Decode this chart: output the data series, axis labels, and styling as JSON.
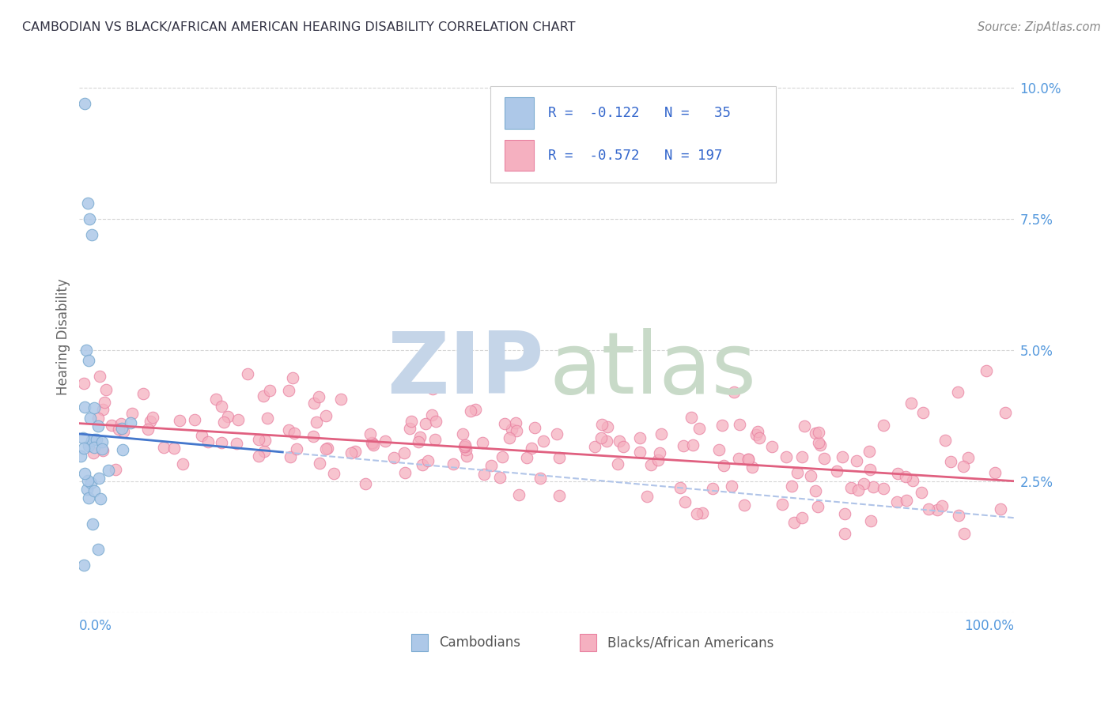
{
  "title": "CAMBODIAN VS BLACK/AFRICAN AMERICAN HEARING DISABILITY CORRELATION CHART",
  "source": "Source: ZipAtlas.com",
  "ylabel": "Hearing Disability",
  "yticks": [
    0.0,
    0.025,
    0.05,
    0.075,
    0.1
  ],
  "ytick_labels": [
    "",
    "2.5%",
    "5.0%",
    "7.5%",
    "10.0%"
  ],
  "xlim": [
    0.0,
    1.0
  ],
  "ylim": [
    0.0,
    0.105
  ],
  "cambodian_color": "#adc8e8",
  "black_color": "#f5b0c0",
  "cambodian_edge": "#7aaad0",
  "black_edge": "#e880a0",
  "blue_line_color": "#4477cc",
  "pink_line_color": "#e06080",
  "dashed_line_color": "#b0c4e8",
  "watermark_zip_color": "#c5d5e8",
  "watermark_atlas_color": "#c8dac8",
  "background_color": "#ffffff",
  "title_color": "#333344",
  "source_color": "#888888",
  "axis_label_color": "#5599dd",
  "ylabel_color": "#666666",
  "legend_text_color": "#3366cc",
  "bottom_label_color": "#555555",
  "grid_color": "#cccccc"
}
